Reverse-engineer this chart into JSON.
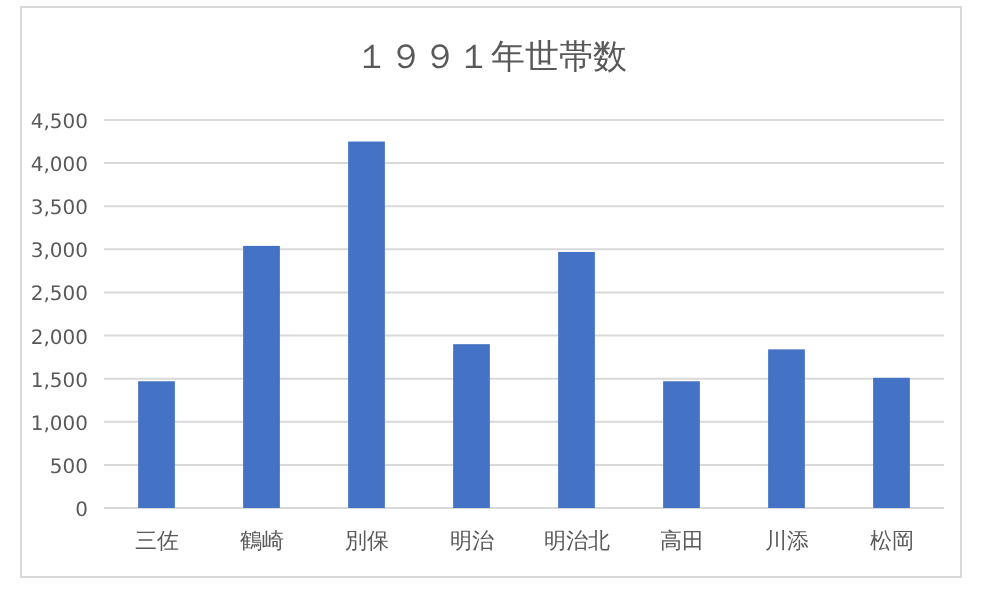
{
  "chart_data": {
    "type": "bar",
    "title": "１９９１年世帯数",
    "categories": [
      "三佐",
      "鶴崎",
      "別保",
      "明治",
      "明治北",
      "高田",
      "川添",
      "松岡"
    ],
    "values": [
      1470,
      3040,
      4250,
      1900,
      2970,
      1470,
      1840,
      1510
    ],
    "color": "#4472c4",
    "ylim": [
      0,
      4500
    ],
    "yticks": [
      {
        "value": 0,
        "label": "0"
      },
      {
        "value": 500,
        "label": "500"
      },
      {
        "value": 1000,
        "label": "1,000"
      },
      {
        "value": 1500,
        "label": "1,500"
      },
      {
        "value": 2000,
        "label": "2,000"
      },
      {
        "value": 2500,
        "label": "2,500"
      },
      {
        "value": 3000,
        "label": "3,000"
      },
      {
        "value": 3500,
        "label": "3,500"
      },
      {
        "value": 4000,
        "label": "4,000"
      },
      {
        "value": 4500,
        "label": "4,500"
      }
    ],
    "grid": "y"
  }
}
